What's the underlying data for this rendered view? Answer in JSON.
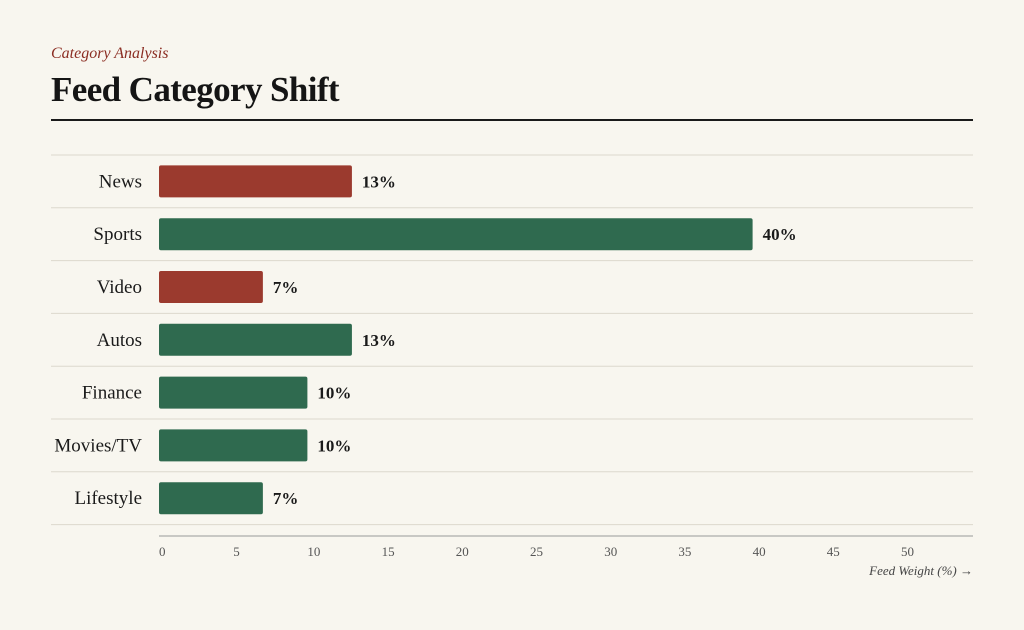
{
  "header": {
    "subtitle": "Category Analysis",
    "title": "Feed Category Shift"
  },
  "colors": {
    "decrease": "#9b3a2e",
    "increase": "#2f6a4f",
    "accent_text": "#8b2d22"
  },
  "chart_data": {
    "type": "bar",
    "orientation": "horizontal",
    "title": "Feed Category Shift",
    "subtitle": "Category Analysis",
    "categories": [
      "News",
      "Sports",
      "Video",
      "Autos",
      "Finance",
      "Movies/TV",
      "Lifestyle"
    ],
    "values": [
      13,
      40,
      7,
      13,
      10,
      10,
      7
    ],
    "value_labels": [
      "13%",
      "40%",
      "7%",
      "13%",
      "10%",
      "10%",
      "7%"
    ],
    "bar_colors": [
      "#9b3a2e",
      "#2f6a4f",
      "#9b3a2e",
      "#2f6a4f",
      "#2f6a4f",
      "#2f6a4f",
      "#2f6a4f"
    ],
    "xlabel": "Feed Weight (%) →",
    "ylabel": "",
    "xlim": [
      0,
      55
    ],
    "xticks": [
      0,
      5,
      10,
      15,
      20,
      25,
      30,
      35,
      40,
      45,
      50
    ],
    "grid": false
  }
}
